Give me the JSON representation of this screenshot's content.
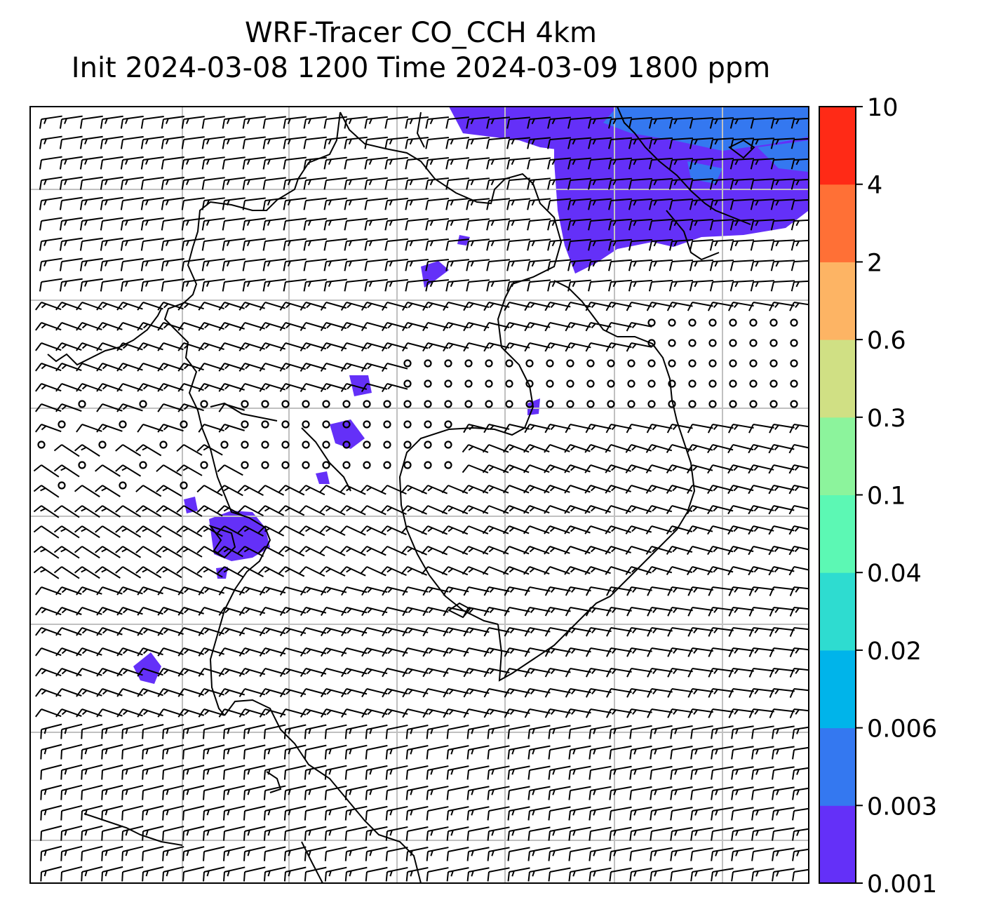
{
  "figure": {
    "title_line1": "WRF-Tracer CO_CCH 4km",
    "title_line2": "Init 2024-03-08 1200 Time 2024-03-09 1800 ppm"
  },
  "colorbar": {
    "levels": [
      "0.001",
      "0.003",
      "0.006",
      "0.02",
      "0.04",
      "0.1",
      "0.3",
      "0.6",
      "2",
      "4",
      "10"
    ],
    "colors": [
      "#6430f8",
      "#3478f0",
      "#00b4ea",
      "#2edcd0",
      "#5cf8b4",
      "#8cf49c",
      "#d0e084",
      "#fdb464",
      "#ff7036",
      "#ff2a16"
    ]
  },
  "field_colors": {
    "tracer_low": "#6430f8",
    "tracer_mid": "#3478f0",
    "coastline": "#000000",
    "gridline": "#c0c0c0",
    "barb": "#000000"
  },
  "map_features": {
    "wind_barbs": true,
    "calm_wind_circles": true,
    "coastlines": true,
    "graticule": true
  }
}
